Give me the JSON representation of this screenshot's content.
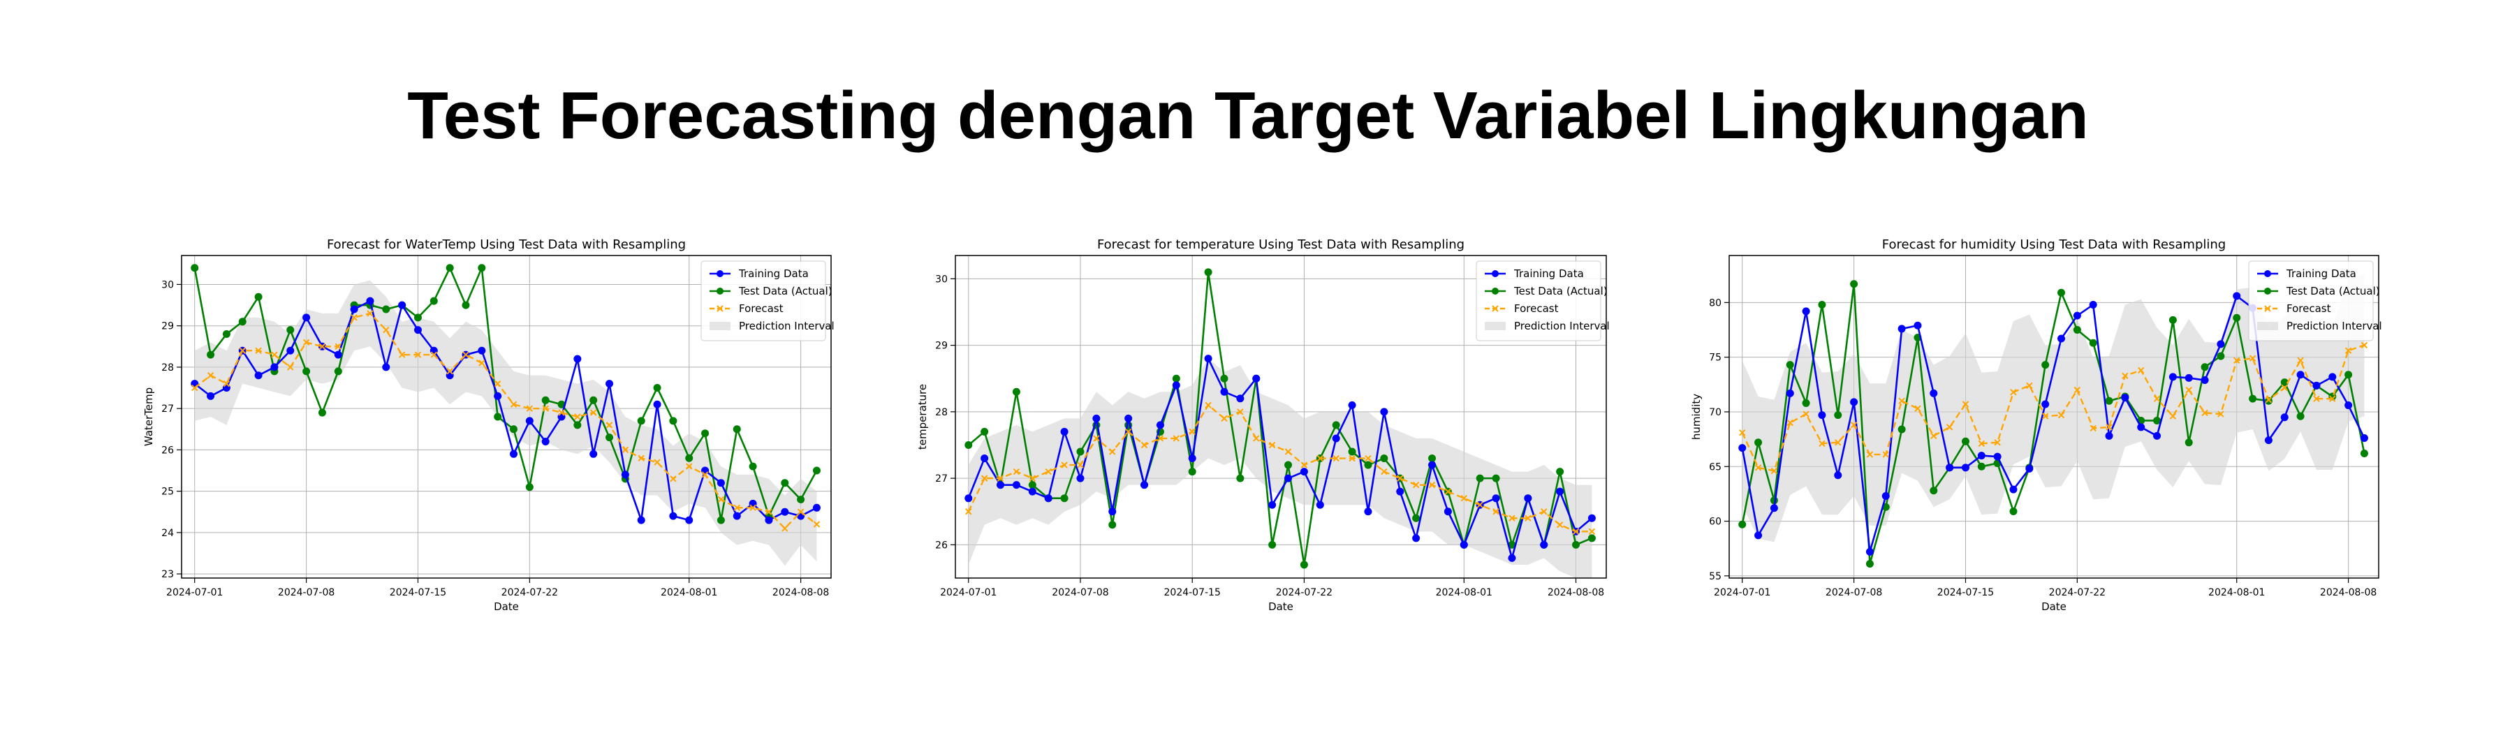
{
  "page_title": "Test Forecasting dengan Target Variabel Lingkungan",
  "colors": {
    "training": "#0000ff",
    "test": "#008000",
    "forecast": "#ffa500",
    "interval": "#d3d3d3"
  },
  "chart_data": [
    {
      "type": "line",
      "title": "Forecast for WaterTemp Using Test Data with Resampling",
      "xlabel": "Date",
      "ylabel": "WaterTemp",
      "x_start": "2024-07-01",
      "x_end": "2024-08-09",
      "ylim": [
        22.9,
        30.7
      ],
      "yticks": [
        23,
        24,
        25,
        26,
        27,
        28,
        29,
        30
      ],
      "xticks": [
        "2024-07-01",
        "2024-07-08",
        "2024-07-15",
        "2024-07-22",
        "2024-08-01",
        "2024-08-08"
      ],
      "grid": true,
      "legend": "top-right",
      "series": [
        {
          "name": "Training Data",
          "color": "#0000ff",
          "style": "solid",
          "marker": "circle",
          "values": [
            27.6,
            27.3,
            27.5,
            28.4,
            27.8,
            28.0,
            28.4,
            29.2,
            28.5,
            28.3,
            29.4,
            29.6,
            28.0,
            29.5,
            28.9,
            28.4,
            27.8,
            28.3,
            28.4,
            27.3,
            25.9,
            26.7,
            26.2,
            26.8,
            28.2,
            25.9,
            27.6,
            25.4,
            24.3,
            27.1,
            24.4,
            24.3,
            25.5,
            25.2,
            24.4,
            24.7,
            24.3,
            24.5,
            24.4,
            24.6
          ]
        },
        {
          "name": "Test Data (Actual)",
          "color": "#008000",
          "style": "solid",
          "marker": "circle",
          "values": [
            30.4,
            28.3,
            28.8,
            29.1,
            29.7,
            27.9,
            28.9,
            27.9,
            26.9,
            27.9,
            29.5,
            29.5,
            29.4,
            29.5,
            29.2,
            29.6,
            30.4,
            29.5,
            30.4,
            26.8,
            26.5,
            25.1,
            27.2,
            27.1,
            26.6,
            27.2,
            26.3,
            25.3,
            26.7,
            27.5,
            26.7,
            25.8,
            26.4,
            24.3,
            26.5,
            25.6,
            24.4,
            25.2,
            24.8,
            25.5
          ]
        },
        {
          "name": "Forecast",
          "color": "#ffa500",
          "style": "dashed",
          "marker": "x",
          "values": [
            27.5,
            27.8,
            27.6,
            28.4,
            28.4,
            28.3,
            28.0,
            28.6,
            28.5,
            28.5,
            29.2,
            29.3,
            28.9,
            28.3,
            28.3,
            28.3,
            27.9,
            28.3,
            28.1,
            27.6,
            27.1,
            27.0,
            27.0,
            26.9,
            26.8,
            26.9,
            26.6,
            26.0,
            25.8,
            25.7,
            25.3,
            25.6,
            25.4,
            24.8,
            24.6,
            24.6,
            24.5,
            24.1,
            24.5,
            24.2
          ]
        },
        {
          "name": "Prediction Interval",
          "color": "#d3d3d3",
          "kind": "band",
          "lower": [
            26.7,
            26.8,
            26.6,
            27.6,
            27.5,
            27.4,
            27.3,
            27.7,
            27.6,
            27.7,
            28.4,
            28.5,
            28.1,
            27.5,
            27.4,
            27.5,
            27.1,
            27.4,
            27.3,
            26.8,
            26.3,
            26.1,
            26.2,
            26.0,
            25.9,
            26.1,
            25.7,
            25.2,
            24.9,
            24.9,
            24.5,
            24.7,
            24.6,
            24.0,
            23.7,
            23.8,
            23.7,
            23.2,
            23.7,
            23.3
          ],
          "upper": [
            28.4,
            28.6,
            28.4,
            29.2,
            29.2,
            29.1,
            28.8,
            29.4,
            29.3,
            29.3,
            30.0,
            30.1,
            29.7,
            29.1,
            29.2,
            29.1,
            28.7,
            29.1,
            28.9,
            28.4,
            27.9,
            27.8,
            27.8,
            27.7,
            27.6,
            27.7,
            27.4,
            26.8,
            26.6,
            26.5,
            26.1,
            26.4,
            26.2,
            25.6,
            25.4,
            25.4,
            25.3,
            24.9,
            25.3,
            25.0
          ]
        }
      ]
    },
    {
      "type": "line",
      "title": "Forecast for temperature Using Test Data with Resampling",
      "xlabel": "Date",
      "ylabel": "temperature",
      "x_start": "2024-07-01",
      "x_end": "2024-08-09",
      "ylim": [
        25.5,
        30.35
      ],
      "yticks": [
        26,
        27,
        28,
        29,
        30
      ],
      "xticks": [
        "2024-07-01",
        "2024-07-08",
        "2024-07-15",
        "2024-07-22",
        "2024-08-01",
        "2024-08-08"
      ],
      "grid": true,
      "legend": "top-right",
      "series": [
        {
          "name": "Training Data",
          "color": "#0000ff",
          "style": "solid",
          "marker": "circle",
          "values": [
            26.7,
            27.3,
            26.9,
            26.9,
            26.8,
            26.7,
            27.7,
            27.0,
            27.9,
            26.5,
            27.9,
            26.9,
            27.8,
            28.4,
            27.3,
            28.8,
            28.3,
            28.2,
            28.5,
            26.6,
            27.0,
            27.1,
            26.6,
            27.6,
            28.1,
            26.5,
            28.0,
            26.8,
            26.1,
            27.2,
            26.5,
            26.0,
            26.6,
            26.7,
            25.8,
            26.7,
            26.0,
            26.8,
            26.2,
            26.4
          ]
        },
        {
          "name": "Test Data (Actual)",
          "color": "#008000",
          "style": "solid",
          "marker": "circle",
          "values": [
            27.5,
            27.7,
            26.9,
            28.3,
            26.9,
            26.7,
            26.7,
            27.4,
            27.8,
            26.3,
            27.8,
            26.9,
            27.7,
            28.5,
            27.1,
            30.1,
            28.5,
            27.0,
            28.5,
            26.0,
            27.2,
            25.7,
            27.3,
            27.8,
            27.4,
            27.2,
            27.3,
            27.0,
            26.4,
            27.3,
            26.8,
            26.0,
            27.0,
            27.0,
            26.0,
            26.7,
            26.0,
            27.1,
            26.0,
            26.1
          ]
        },
        {
          "name": "Forecast",
          "color": "#ffa500",
          "style": "dashed",
          "marker": "x",
          "values": [
            26.5,
            27.0,
            27.0,
            27.1,
            27.0,
            27.1,
            27.2,
            27.2,
            27.6,
            27.4,
            27.7,
            27.5,
            27.6,
            27.6,
            27.7,
            28.1,
            27.9,
            28.0,
            27.6,
            27.5,
            27.4,
            27.2,
            27.3,
            27.3,
            27.3,
            27.3,
            27.1,
            27.0,
            26.9,
            26.9,
            26.8,
            26.7,
            26.6,
            26.5,
            26.4,
            26.4,
            26.5,
            26.3,
            26.2,
            26.2
          ]
        },
        {
          "name": "Prediction Interval",
          "color": "#d3d3d3",
          "kind": "band",
          "lower": [
            25.7,
            26.3,
            26.4,
            26.3,
            26.4,
            26.3,
            26.5,
            26.6,
            26.8,
            26.7,
            26.9,
            26.9,
            26.9,
            26.9,
            27.1,
            27.3,
            27.2,
            27.3,
            27.0,
            26.8,
            26.7,
            26.6,
            26.6,
            26.6,
            26.6,
            26.6,
            26.4,
            26.3,
            26.2,
            26.2,
            26.0,
            26.0,
            25.9,
            25.8,
            25.7,
            25.7,
            25.8,
            25.6,
            25.5,
            25.5
          ],
          "upper": [
            27.2,
            27.6,
            27.7,
            27.8,
            27.7,
            27.8,
            27.9,
            27.9,
            28.3,
            28.1,
            28.3,
            28.2,
            28.3,
            28.3,
            28.4,
            28.8,
            28.6,
            28.7,
            28.3,
            28.2,
            28.1,
            27.9,
            28.0,
            28.0,
            28.0,
            28.0,
            27.8,
            27.7,
            27.6,
            27.6,
            27.5,
            27.4,
            27.3,
            27.2,
            27.1,
            27.1,
            27.2,
            27.0,
            26.9,
            26.9
          ]
        }
      ]
    },
    {
      "type": "line",
      "title": "Forecast for humidity Using Test Data with Resampling",
      "xlabel": "Date",
      "ylabel": "humidity",
      "x_start": "2024-07-01",
      "x_end": "2024-08-09",
      "ylim": [
        54.8,
        84.3
      ],
      "yticks": [
        55,
        60,
        65,
        70,
        75,
        80
      ],
      "xticks": [
        "2024-07-01",
        "2024-07-08",
        "2024-07-15",
        "2024-07-22",
        "2024-08-01",
        "2024-08-08"
      ],
      "grid": true,
      "legend": "top-right",
      "series": [
        {
          "name": "Training Data",
          "color": "#0000ff",
          "style": "solid",
          "marker": "circle",
          "values": [
            66.7,
            58.7,
            61.2,
            71.7,
            79.2,
            69.7,
            64.2,
            70.9,
            57.2,
            62.3,
            77.6,
            77.9,
            71.7,
            64.9,
            64.9,
            66.0,
            65.9,
            62.9,
            64.8,
            70.7,
            76.7,
            78.8,
            79.8,
            67.8,
            71.3,
            68.6,
            67.8,
            73.2,
            73.1,
            72.9,
            76.2,
            80.6,
            79.5,
            67.4,
            69.5,
            73.4,
            72.4,
            73.2,
            70.6,
            67.6
          ]
        },
        {
          "name": "Test Data (Actual)",
          "color": "#008000",
          "style": "solid",
          "marker": "circle",
          "values": [
            59.7,
            67.2,
            61.9,
            74.3,
            70.8,
            79.8,
            69.7,
            81.7,
            56.1,
            61.3,
            68.4,
            76.8,
            62.8,
            64.9,
            67.3,
            65.0,
            65.3,
            60.9,
            64.9,
            74.3,
            80.9,
            77.5,
            76.3,
            71.0,
            71.4,
            69.2,
            69.2,
            78.4,
            67.2,
            74.1,
            75.1,
            78.6,
            71.2,
            71.0,
            72.7,
            69.6,
            72.4,
            71.4,
            73.4,
            66.2
          ]
        },
        {
          "name": "Forecast",
          "color": "#ffa500",
          "style": "dashed",
          "marker": "x",
          "values": [
            68.1,
            64.9,
            64.6,
            69.0,
            69.8,
            67.1,
            67.2,
            68.8,
            66.1,
            66.1,
            71.0,
            70.3,
            67.8,
            68.6,
            70.7,
            67.1,
            67.2,
            71.8,
            72.4,
            69.6,
            69.7,
            72.0,
            68.5,
            68.6,
            73.3,
            73.8,
            71.2,
            69.6,
            72.0,
            69.9,
            69.8,
            74.7,
            74.9,
            71.1,
            72.2,
            74.7,
            71.2,
            71.2,
            75.6,
            76.1
          ]
        },
        {
          "name": "Prediction Interval",
          "color": "#d3d3d3",
          "kind": "band",
          "lower": [
            61.5,
            58.4,
            58.1,
            62.4,
            63.2,
            60.6,
            60.6,
            62.3,
            59.6,
            59.6,
            64.4,
            63.7,
            61.3,
            62.0,
            64.1,
            60.6,
            60.7,
            65.2,
            65.9,
            63.1,
            63.2,
            65.5,
            62.0,
            62.1,
            66.8,
            67.3,
            64.7,
            63.1,
            65.5,
            63.4,
            63.3,
            68.1,
            68.4,
            64.6,
            65.7,
            68.2,
            64.7,
            64.7,
            69.1,
            69.6
          ],
          "upper": [
            74.7,
            71.4,
            71.1,
            75.5,
            76.3,
            73.6,
            73.7,
            75.3,
            72.6,
            72.6,
            77.5,
            76.8,
            74.3,
            75.1,
            77.2,
            73.6,
            73.7,
            78.3,
            78.9,
            76.1,
            76.2,
            78.5,
            75.0,
            75.1,
            79.8,
            80.3,
            77.7,
            76.1,
            78.5,
            76.4,
            76.3,
            81.2,
            81.4,
            77.6,
            78.7,
            81.2,
            77.7,
            77.7,
            82.1,
            82.6
          ]
        }
      ]
    }
  ]
}
